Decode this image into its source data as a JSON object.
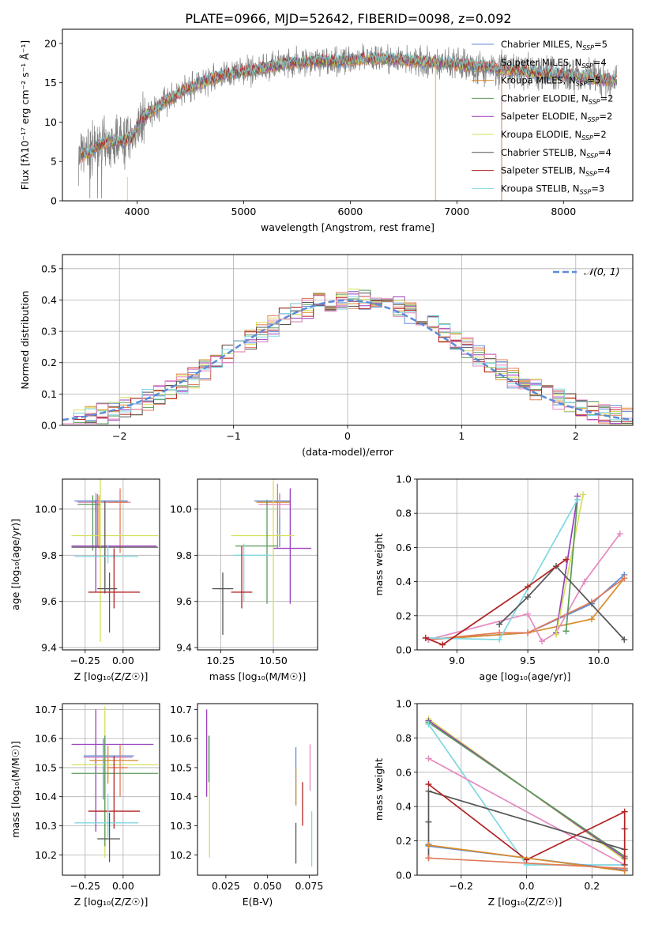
{
  "title": "PLATE=0966, MJD=52642, FIBERID=0098, z=0.092",
  "colors": {
    "Chabrier MILES": "#5b8bd6",
    "Salpeter MILES": "#e07b5a",
    "Kroupa MILES": "#d98c2b",
    "Chabrier ELODIE": "#5a9a5a",
    "Salpeter ELODIE": "#9b3fbf",
    "Kroupa ELODIE": "#d4e05a",
    "Chabrier STELIB": "#555555",
    "Salpeter STELIB": "#b22222",
    "Kroupa STELIB": "#80d8e0",
    "Pink": "#e58ac0",
    "Gaussian": "#5b8bd6"
  },
  "chart_data": [
    {
      "id": "spectrum",
      "type": "line",
      "title": "PLATE=0966, MJD=52642, FIBERID=0098, z=0.092",
      "xlabel": "wavelength [Angstrom, rest frame]",
      "ylabel": "Flux [fλ10⁻¹⁷ erg cm⁻² s⁻¹ Å⁻¹]",
      "xlim": [
        3300,
        8650
      ],
      "ylim": [
        0,
        21.8
      ],
      "xticks": [
        4000,
        5000,
        6000,
        7000,
        8000
      ],
      "yticks": [
        0,
        5,
        10,
        15,
        20
      ],
      "legend_position": "right",
      "data_envelope": {
        "x": [
          3450,
          3550,
          3650,
          3750,
          3850,
          3950,
          4050,
          4150,
          4250,
          4350,
          4500,
          4700,
          4900,
          5100,
          5300,
          5500,
          5700,
          5900,
          6100,
          6300,
          6500,
          6700,
          6900,
          7100,
          7300,
          7500,
          7700,
          7900,
          8100,
          8300,
          8500
        ],
        "y": [
          5.6,
          6.2,
          7.2,
          7.5,
          7.6,
          8.0,
          10.5,
          11.5,
          12.5,
          13.3,
          14.5,
          15.5,
          16.3,
          16.6,
          17.2,
          17.6,
          17.8,
          17.7,
          18.0,
          18.0,
          17.9,
          17.7,
          17.5,
          17.2,
          17.0,
          16.6,
          16.3,
          16.1,
          15.9,
          15.5,
          15.3
        ]
      },
      "series": [
        {
          "name": "Chabrier MILES, N_SSP=5"
        },
        {
          "name": "Salpeter MILES, N_SSP=4"
        },
        {
          "name": "Kroupa MILES, N_SSP=5"
        },
        {
          "name": "Chabrier ELODIE, N_SSP=2"
        },
        {
          "name": "Salpeter ELODIE, N_SSP=2"
        },
        {
          "name": "Kroupa ELODIE, N_SSP=2"
        },
        {
          "name": "Chabrier STELIB, N_SSP=4"
        },
        {
          "name": "Salpeter STELIB, N_SSP=4"
        },
        {
          "name": "Kroupa STELIB, N_SSP=3"
        }
      ],
      "legend": [
        {
          "label": "Chabrier MILES, N",
          "sub": "SSP",
          "tail": "=5",
          "color": "#5b8bd6"
        },
        {
          "label": "Salpeter MILES, N",
          "sub": "SSP",
          "tail": "=4",
          "color": "#e07b5a"
        },
        {
          "label": "Kroupa MILES, N",
          "sub": "SSP",
          "tail": "=5",
          "color": "#d98c2b"
        },
        {
          "label": "Chabrier ELODIE, N",
          "sub": "SSP",
          "tail": "=2",
          "color": "#5a9a5a"
        },
        {
          "label": "Salpeter ELODIE, N",
          "sub": "SSP",
          "tail": "=2",
          "color": "#9b3fbf"
        },
        {
          "label": "Kroupa ELODIE, N",
          "sub": "SSP",
          "tail": "=2",
          "color": "#d4e05a"
        },
        {
          "label": "Chabrier STELIB, N",
          "sub": "SSP",
          "tail": "=4",
          "color": "#555555"
        },
        {
          "label": "Salpeter STELIB, N",
          "sub": "SSP",
          "tail": "=4",
          "color": "#b22222"
        },
        {
          "label": "Kroupa STELIB, N",
          "sub": "SSP",
          "tail": "=3",
          "color": "#80d8e0"
        }
      ]
    },
    {
      "id": "residuals",
      "type": "line",
      "xlabel": "(data-model)/error",
      "ylabel": "Normed distribution",
      "xlim": [
        -2.5,
        2.5
      ],
      "ylim": [
        0,
        0.545
      ],
      "xticks": [
        -2,
        -1,
        0,
        1,
        2
      ],
      "yticks": [
        0.0,
        0.1,
        0.2,
        0.3,
        0.4,
        0.5
      ],
      "grid": true,
      "legend": "𝒩(0, 1)",
      "legend_position": "top-right",
      "gaussian": {
        "mean": 0,
        "sigma": 1
      }
    },
    {
      "id": "age_vs_Z",
      "type": "scatter",
      "xlabel": "Z [log₁₀(Z/Z☉)]",
      "ylabel": "age  [log₁₀(age/yr)]",
      "xlim": [
        -0.4,
        0.24
      ],
      "ylim": [
        9.39,
        10.13
      ],
      "xticks": [
        -0.25,
        0.0
      ],
      "yticks": [
        9.4,
        9.6,
        9.8,
        10.0
      ],
      "grid": true,
      "points": [
        {
          "x": -0.17,
          "y": 10.035,
          "xerr": [
            0.15,
            0.2
          ],
          "yerr": [
            0.2,
            0.03
          ],
          "color": "#5b8bd6"
        },
        {
          "x": -0.16,
          "y": 10.03,
          "xerr": [
            0.13,
            0.2
          ],
          "yerr": [
            0.2,
            0.03
          ],
          "color": "#d98c2b"
        },
        {
          "x": -0.18,
          "y": 10.03,
          "xerr": [
            0.12,
            0.23
          ],
          "yerr": [
            0.05,
            0.04
          ],
          "color": "#e58ac0"
        },
        {
          "x": -0.02,
          "y": 10.03,
          "xerr": [
            0.08,
            0.05
          ],
          "yerr": [
            0.22,
            0.06
          ],
          "color": "#e07b5a"
        },
        {
          "x": -0.2,
          "y": 10.02,
          "xerr": [
            0.1,
            0.05
          ],
          "yerr": [
            0.2,
            0.04
          ],
          "color": "#5a9a5a"
        },
        {
          "x": -0.18,
          "y": 9.84,
          "xerr": [
            0.16,
            0.4
          ],
          "yerr": [
            0.2,
            0.2
          ],
          "color": "#9b3fbf"
        },
        {
          "x": -0.15,
          "y": 9.885,
          "xerr": [
            0.19,
            0.38
          ],
          "yerr": [
            0.46,
            0.3
          ],
          "color": "#d4e05a"
        },
        {
          "x": -0.12,
          "y": 9.835,
          "xerr": [
            0.22,
            0.35
          ],
          "yerr": [
            0.2,
            0.2
          ],
          "color": "#555555"
        },
        {
          "x": -0.1,
          "y": 9.795,
          "xerr": [
            0.22,
            0.2
          ],
          "yerr": [
            0.03,
            0.05
          ],
          "color": "#80d8e0"
        },
        {
          "x": -0.06,
          "y": 9.64,
          "xerr": [
            0.17,
            0.17
          ],
          "yerr": [
            0.07,
            0.19
          ],
          "color": "#b22222"
        },
        {
          "x": -0.09,
          "y": 9.655,
          "xerr": [
            0.08,
            0.05
          ],
          "yerr": [
            0.19,
            0.07
          ],
          "color": "#555555"
        }
      ]
    },
    {
      "id": "age_vs_mass",
      "type": "scatter",
      "xlabel": "mass [log₁₀(M/M☉)]",
      "ylabel": "",
      "xlim": [
        10.14,
        10.71
      ],
      "ylim": [
        9.39,
        10.13
      ],
      "xticks": [
        10.25,
        10.5
      ],
      "yticks": [
        9.4,
        9.6,
        9.8,
        10.0
      ],
      "grid": true,
      "points": [
        {
          "x": 10.53,
          "y": 10.035,
          "xerr": [
            0.12,
            0.05
          ],
          "yerr": [
            0.2,
            0.03
          ],
          "color": "#5b8bd6"
        },
        {
          "x": 10.52,
          "y": 10.03,
          "xerr": [
            0.1,
            0.06
          ],
          "yerr": [
            0.2,
            0.08
          ],
          "color": "#d98c2b"
        },
        {
          "x": 10.53,
          "y": 10.02,
          "xerr": [
            0.1,
            0.05
          ],
          "yerr": [
            0.05,
            0.05
          ],
          "color": "#e58ac0"
        },
        {
          "x": 10.58,
          "y": 9.83,
          "xerr": [
            0.08,
            0.1
          ],
          "yerr": [
            0.24,
            0.26
          ],
          "color": "#9b3fbf"
        },
        {
          "x": 10.5,
          "y": 9.885,
          "xerr": [
            0.2,
            0.1
          ],
          "yerr": [
            0.46,
            0.24
          ],
          "color": "#d4e05a"
        },
        {
          "x": 10.47,
          "y": 9.84,
          "xerr": [
            0.15,
            0.05
          ],
          "yerr": [
            0.25,
            0.2
          ],
          "color": "#5a9a5a"
        },
        {
          "x": 10.36,
          "y": 9.8,
          "xerr": [
            0.05,
            0.12
          ],
          "yerr": [
            0.2,
            0.05
          ],
          "color": "#80d8e0"
        },
        {
          "x": 10.35,
          "y": 9.64,
          "xerr": [
            0.05,
            0.05
          ],
          "yerr": [
            0.07,
            0.2
          ],
          "color": "#b22222"
        },
        {
          "x": 10.26,
          "y": 9.655,
          "xerr": [
            0.05,
            0.05
          ],
          "yerr": [
            0.2,
            0.07
          ],
          "color": "#555555"
        }
      ]
    },
    {
      "id": "massweight_vs_age",
      "type": "line",
      "xlabel": "age  [log₁₀(age/yr)]",
      "ylabel": "mass weight",
      "xlim": [
        8.72,
        10.24
      ],
      "ylim": [
        0,
        1.0
      ],
      "xticks": [
        9.0,
        9.5,
        10.0
      ],
      "yticks": [
        0.0,
        0.2,
        0.4,
        0.6,
        0.8,
        1.0
      ],
      "grid": true,
      "series": [
        {
          "color": "#5b8bd6",
          "x": [
            8.8,
            9.5,
            9.95,
            10.18
          ],
          "y": [
            0.06,
            0.1,
            0.27,
            0.44
          ]
        },
        {
          "color": "#d98c2b",
          "x": [
            8.8,
            9.5,
            9.95,
            10.18
          ],
          "y": [
            0.06,
            0.1,
            0.18,
            0.42
          ]
        },
        {
          "color": "#e07b5a",
          "x": [
            8.8,
            9.3,
            9.5,
            9.95,
            10.18
          ],
          "y": [
            0.06,
            0.1,
            0.1,
            0.28,
            0.42
          ]
        },
        {
          "color": "#e58ac0",
          "x": [
            8.8,
            9.5,
            9.6,
            9.7,
            9.9,
            10.15
          ],
          "y": [
            0.06,
            0.21,
            0.05,
            0.1,
            0.4,
            0.68
          ]
        },
        {
          "color": "#9b3fbf",
          "x": [
            9.7,
            9.85
          ],
          "y": [
            0.1,
            0.9
          ]
        },
        {
          "color": "#d4e05a",
          "x": [
            9.7,
            9.89
          ],
          "y": [
            0.09,
            0.91
          ]
        },
        {
          "color": "#5a9a5a",
          "x": [
            9.77,
            9.85
          ],
          "y": [
            0.11,
            0.88
          ]
        },
        {
          "color": "#80d8e0",
          "x": [
            8.78,
            9.3,
            9.85
          ],
          "y": [
            0.07,
            0.06,
            0.88
          ]
        },
        {
          "color": "#555555",
          "x": [
            9.3,
            9.5,
            9.7,
            10.18
          ],
          "y": [
            0.15,
            0.31,
            0.49,
            0.06
          ]
        },
        {
          "color": "#b22222",
          "x": [
            8.78,
            8.9,
            9.5,
            9.77
          ],
          "y": [
            0.07,
            0.03,
            0.37,
            0.53
          ]
        }
      ]
    },
    {
      "id": "mass_vs_Z",
      "type": "scatter",
      "xlabel": "Z [log₁₀(Z/Z☉)]",
      "ylabel": "mass [log₁₀(M/M☉)]",
      "xlim": [
        -0.4,
        0.24
      ],
      "ylim": [
        10.13,
        10.72
      ],
      "xticks": [
        -0.25,
        0.0
      ],
      "yticks": [
        10.2,
        10.3,
        10.4,
        10.5,
        10.6,
        10.7
      ],
      "grid": true,
      "points": [
        {
          "x": -0.18,
          "y": 10.58,
          "xerr": [
            0.16,
            0.38
          ],
          "yerr": [
            0.3,
            0.12
          ],
          "color": "#9b3fbf"
        },
        {
          "x": -0.13,
          "y": 10.54,
          "xerr": [
            0.13,
            0.2
          ],
          "yerr": [
            0.15,
            0.06
          ],
          "color": "#5b8bd6"
        },
        {
          "x": -0.12,
          "y": 10.535,
          "xerr": [
            0.14,
            0.18
          ],
          "yerr": [
            0.1,
            0.05
          ],
          "color": "#e58ac0"
        },
        {
          "x": -0.1,
          "y": 10.525,
          "xerr": [
            0.12,
            0.2
          ],
          "yerr": [
            0.08,
            0.05
          ],
          "color": "#d98c2b"
        },
        {
          "x": -0.12,
          "y": 10.51,
          "xerr": [
            0.22,
            0.35
          ],
          "yerr": [
            0.32,
            0.2
          ],
          "color": "#d4e05a"
        },
        {
          "x": -0.02,
          "y": 10.5,
          "xerr": [
            0.08,
            0.05
          ],
          "yerr": [
            0.1,
            0.08
          ],
          "color": "#e07b5a"
        },
        {
          "x": -0.12,
          "y": 10.48,
          "xerr": [
            0.22,
            0.35
          ],
          "yerr": [
            0.25,
            0.13
          ],
          "color": "#5a9a5a"
        },
        {
          "x": -0.06,
          "y": 10.35,
          "xerr": [
            0.17,
            0.17
          ],
          "yerr": [
            0.06,
            0.19
          ],
          "color": "#b22222"
        },
        {
          "x": -0.1,
          "y": 10.31,
          "xerr": [
            0.22,
            0.2
          ],
          "yerr": [
            0.05,
            0.1
          ],
          "color": "#80d8e0"
        },
        {
          "x": -0.09,
          "y": 10.255,
          "xerr": [
            0.08,
            0.07
          ],
          "yerr": [
            0.08,
            0.09
          ],
          "color": "#555555"
        }
      ]
    },
    {
      "id": "mass_vs_ebv",
      "type": "scatter",
      "xlabel": "E(B-V)",
      "ylabel": "",
      "xlim": [
        0.008,
        0.08
      ],
      "ylim": [
        10.13,
        10.72
      ],
      "xticks": [
        0.025,
        0.05,
        0.075
      ],
      "yticks": [
        10.2,
        10.3,
        10.4,
        10.5,
        10.6,
        10.7
      ],
      "grid": false,
      "points": [
        {
          "x": 0.0135,
          "y": 10.5,
          "yerr": [
            0.1,
            0.2
          ],
          "color": "#9b3fbf"
        },
        {
          "x": 0.0152,
          "y": 10.44,
          "yerr": [
            0.25,
            0.17
          ],
          "color": "#d4e05a"
        },
        {
          "x": 0.0148,
          "y": 10.55,
          "yerr": [
            0.1,
            0.06
          ],
          "color": "#5a9a5a"
        },
        {
          "x": 0.067,
          "y": 10.46,
          "yerr": [
            0.09,
            0.11
          ],
          "color": "#5b8bd6"
        },
        {
          "x": 0.067,
          "y": 10.45,
          "yerr": [
            0.08,
            0.05
          ],
          "color": "#d98c2b"
        },
        {
          "x": 0.071,
          "y": 10.38,
          "yerr": [
            0.08,
            0.07
          ],
          "color": "#b22222"
        },
        {
          "x": 0.067,
          "y": 10.25,
          "yerr": [
            0.08,
            0.06
          ],
          "color": "#555555"
        },
        {
          "x": 0.0755,
          "y": 10.48,
          "yerr": [
            0.06,
            0.1
          ],
          "color": "#e58ac0"
        },
        {
          "x": 0.0765,
          "y": 10.3,
          "yerr": [
            0.14,
            0.05
          ],
          "color": "#80d8e0"
        }
      ]
    },
    {
      "id": "massweight_vs_Z",
      "type": "line",
      "xlabel": "Z [log₁₀(Z/Z☉)]",
      "ylabel": "mass weight",
      "xlim": [
        -0.335,
        0.325
      ],
      "ylim": [
        0,
        1.0
      ],
      "xticks": [
        -0.2,
        0.0,
        0.2
      ],
      "yticks": [
        0.0,
        0.2,
        0.4,
        0.6,
        0.8,
        1.0
      ],
      "grid": true,
      "series": [
        {
          "color": "#d4e05a",
          "x": [
            -0.3,
            0.3
          ],
          "y": [
            0.91,
            0.09
          ]
        },
        {
          "color": "#9b3fbf",
          "x": [
            -0.3,
            0.3
          ],
          "y": [
            0.9,
            0.1
          ]
        },
        {
          "color": "#5a9a5a",
          "x": [
            -0.3,
            0.3
          ],
          "y": [
            0.89,
            0.11
          ]
        },
        {
          "color": "#80d8e0",
          "x": [
            -0.3,
            0.0,
            0.3
          ],
          "y": [
            0.88,
            0.06,
            0.06
          ]
        },
        {
          "color": "#e58ac0",
          "x": [
            -0.3,
            0.3
          ],
          "y": [
            0.68,
            0.06
          ]
        },
        {
          "color": "#555555",
          "x": [
            -0.3,
            -0.3,
            -0.3,
            0.3,
            0.3
          ],
          "y": [
            0.1,
            0.31,
            0.49,
            0.15,
            0.06
          ]
        },
        {
          "color": "#b22222",
          "x": [
            -0.3,
            0.0,
            0.3,
            0.3,
            0.3
          ],
          "y": [
            0.53,
            0.09,
            0.37,
            0.27,
            0.03
          ]
        },
        {
          "color": "#5b8bd6",
          "x": [
            -0.3,
            -0.3,
            0.3,
            0.3
          ],
          "y": [
            0.18,
            0.17,
            0.03,
            0.03
          ]
        },
        {
          "color": "#d98c2b",
          "x": [
            -0.3,
            0.3
          ],
          "y": [
            0.175,
            0.025
          ]
        },
        {
          "color": "#e07b5a",
          "x": [
            -0.3,
            0.3
          ],
          "y": [
            0.1,
            0.04
          ]
        }
      ]
    }
  ]
}
